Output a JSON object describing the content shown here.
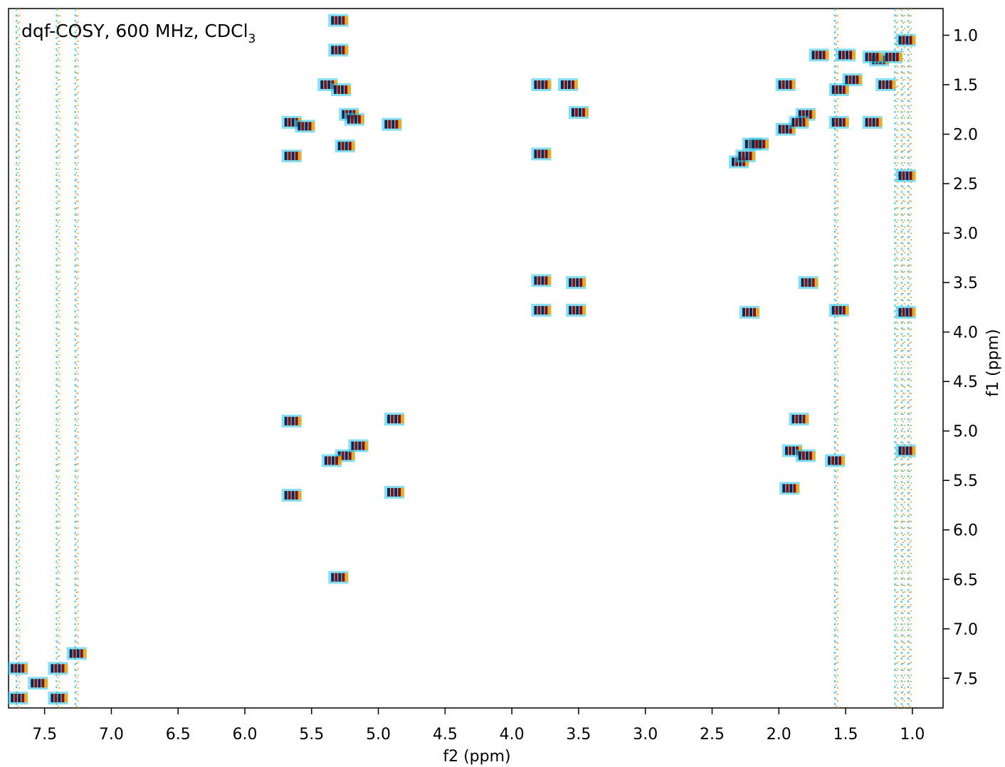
{
  "chart_data": {
    "type": "scatter",
    "title": "dqf-COSY, 600 MHz, CDCl",
    "title_sub": "3",
    "x_label": "f2 (ppm)",
    "y_label": "f1 (ppm)",
    "xlim": [
      7.77,
      0.77
    ],
    "ylim": [
      0.73,
      7.8
    ],
    "xticks": [
      7.5,
      {
        "value": 7,
        "label": "7.0"
      },
      6.5,
      {
        "value": 6,
        "label": "6.0"
      },
      5.5,
      {
        "value": 5,
        "label": "5.0"
      },
      4.5,
      {
        "value": 4,
        "label": "4.0"
      },
      3.5,
      {
        "value": 3,
        "label": "3.0"
      },
      2.5,
      {
        "value": 2,
        "label": "2.0"
      },
      1.5,
      {
        "value": 1,
        "label": "1.0"
      }
    ],
    "yticks": [
      {
        "value": 1,
        "label": "1.0"
      },
      1.5,
      {
        "value": 2,
        "label": "2.0"
      },
      2.5,
      {
        "value": 3,
        "label": "3.0"
      },
      3.5,
      {
        "value": 4,
        "label": "4.0"
      },
      4.5,
      {
        "value": 5,
        "label": "5.0"
      },
      5.5,
      {
        "value": 6,
        "label": "6.0"
      },
      6.5,
      {
        "value": 7,
        "label": "7.0"
      },
      7.5
    ],
    "x": [
      7.7,
      7.4,
      7.7,
      7.4,
      7.26,
      7.55,
      5.65,
      5.25,
      5.35,
      5.15,
      4.88,
      3.78,
      3.52,
      2.3,
      2.2,
      1.95,
      1.8,
      1.55,
      1.45,
      1.25,
      5.65,
      4.88,
      5.65,
      5.55,
      5.65,
      5.38,
      5.28,
      5.22,
      5.18,
      4.9,
      5.25,
      3.78,
      3.78,
      3.5,
      3.78,
      3.52,
      1.78,
      1.55,
      2.22,
      1.9,
      1.8,
      1.58,
      1.92,
      1.85,
      1.7,
      1.5,
      1.95,
      1.3,
      1.2,
      1.85,
      1.55,
      1.3,
      1.15,
      2.25,
      2.15,
      5.3,
      5.3,
      5.3,
      3.58,
      1.05,
      1.05,
      1.05,
      1.05
    ],
    "values": [
      7.7,
      7.4,
      7.4,
      7.7,
      7.25,
      7.55,
      5.65,
      5.25,
      5.3,
      5.15,
      4.88,
      3.78,
      3.5,
      2.28,
      2.1,
      1.95,
      1.8,
      1.55,
      1.45,
      1.25,
      4.9,
      5.62,
      1.88,
      1.92,
      2.22,
      1.5,
      1.55,
      1.8,
      1.85,
      1.9,
      2.12,
      1.5,
      2.2,
      1.78,
      3.48,
      3.78,
      3.5,
      3.78,
      3.8,
      5.2,
      5.25,
      5.3,
      5.58,
      4.88,
      1.2,
      1.2,
      1.5,
      1.88,
      1.5,
      1.88,
      1.88,
      1.22,
      1.22,
      2.22,
      2.1,
      0.85,
      1.15,
      6.48,
      1.5,
      1.05,
      2.42,
      3.8,
      5.2
    ],
    "streaks_x": [
      7.7,
      7.4,
      7.26,
      1.57,
      1.12,
      1.07,
      1.02
    ],
    "color": "#8a0f0a",
    "color2": "#14244f",
    "noise_colors": [
      "#22c4e8",
      "#f2a400"
    ]
  }
}
